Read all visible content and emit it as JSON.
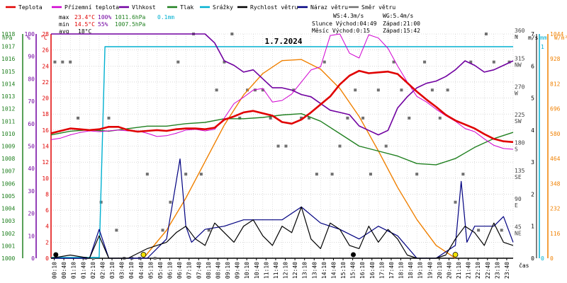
{
  "chart_data": {
    "type": "line",
    "title": "1.7.2024",
    "legend": [
      {
        "label": "Teplota",
        "color": "#e00000"
      },
      {
        "label": "Přízemní teplota",
        "color": "#d000d0"
      },
      {
        "label": "Vlhkost",
        "color": "#7000a0"
      },
      {
        "label": "Tlak",
        "color": "#208020"
      },
      {
        "label": "Srážky",
        "color": "#00b0d0"
      },
      {
        "label": "Rychlost větru",
        "color": "#000000"
      },
      {
        "label": "Náraz větru",
        "color": "#000080"
      },
      {
        "label": "Směr větru",
        "color": "#707070"
      }
    ],
    "stats": {
      "max_label": "max",
      "max_temp": "23.4°C",
      "max_hum": "100%",
      "max_press": "1011.6hPa",
      "max_rain": "0.1mm",
      "min_label": "min",
      "min_temp": "14.5°C",
      "min_hum": "55%",
      "min_press": "1007.5hPa",
      "avg_label": "avg",
      "avg_temp": "18°C",
      "ws": "WS:4.3m/s",
      "wg": "WG:5.4m/s",
      "sun": "Slunce Východ:04:49",
      "sun_set": "Západ:21:00",
      "moon": "Měsíc  Východ:0:15",
      "moon_set": "Západ:15:42"
    },
    "axes": {
      "hpa_unit": "hPa",
      "pct_unit": "%",
      "c_unit": "°C",
      "deg_unit": "°",
      "ms_unit": "m/s",
      "mm_unit": "mm",
      "wm_unit": "W/m²",
      "xlabel": "čas",
      "hpa_ticks": [
        "1018",
        "1017",
        "1016",
        "1015",
        "1014",
        "1013",
        "1012",
        "1011",
        "1010",
        "1009",
        "1008",
        "1007",
        "1006",
        "1005",
        "1004",
        "1003",
        "1002",
        "1001",
        "1000"
      ],
      "pct_ticks": [
        "100",
        "90",
        "80",
        "70",
        "60",
        "50",
        "40",
        "30",
        "20",
        "10",
        "0"
      ],
      "c_ticks": [
        "28",
        "26",
        "24",
        "22",
        "20",
        "18",
        "16",
        "14",
        "12",
        "10",
        "8",
        "6",
        "4",
        "2",
        "0"
      ],
      "dir_ticks": [
        {
          "v": "360",
          "d": "N"
        },
        {
          "v": "315",
          "d": "NW"
        },
        {
          "v": "270",
          "d": "W"
        },
        {
          "v": "225",
          "d": "SW"
        },
        {
          "v": "180",
          "d": "S"
        },
        {
          "v": "135",
          "d": "SE"
        },
        {
          "v": "90",
          "d": "E"
        },
        {
          "v": "45",
          "d": "NE"
        }
      ],
      "ms_ticks": [
        "7",
        "6",
        "5",
        "4",
        "3",
        "2",
        "1",
        "0"
      ],
      "mm_ticks": [
        "1",
        "0"
      ],
      "wm_ticks": [
        "1044",
        "928",
        "812",
        "696",
        "580",
        "464",
        "348",
        "232",
        "116",
        "0"
      ],
      "time_ticks": [
        "00:10",
        "00:40",
        "01:10",
        "01:40",
        "02:10",
        "02:40",
        "03:10",
        "03:40",
        "04:10",
        "04:40",
        "05:10",
        "05:40",
        "06:10",
        "06:40",
        "07:10",
        "07:40",
        "08:10",
        "08:40",
        "09:10",
        "09:40",
        "10:10",
        "10:40",
        "11:10",
        "11:40",
        "12:10",
        "12:40",
        "13:10",
        "13:40",
        "14:10",
        "14:40",
        "15:10",
        "15:40",
        "16:10",
        "16:40",
        "17:10",
        "17:40",
        "18:10",
        "18:40",
        "19:10",
        "19:40",
        "20:10",
        "20:40",
        "21:10",
        "21:40",
        "22:10",
        "22:40",
        "23:10",
        "23:40"
      ]
    },
    "ylim_temp": [
      0,
      28
    ],
    "ylim_hum": [
      0,
      100
    ],
    "ylim_press": [
      1000,
      1018
    ],
    "ylim_wind": [
      0,
      7
    ],
    "ylim_dir": [
      0,
      360
    ],
    "ylim_solar": [
      0,
      1044
    ],
    "series": [
      {
        "name": "Teplota",
        "x_hours": [
          0,
          0.5,
          1,
          1.5,
          2,
          2.5,
          3,
          3.5,
          4,
          4.5,
          5,
          5.5,
          6,
          6.5,
          7,
          7.5,
          8,
          8.5,
          9,
          9.5,
          10,
          10.5,
          11,
          11.5,
          12,
          12.5,
          13,
          13.5,
          14,
          14.5,
          15,
          15.5,
          16,
          16.5,
          17,
          17.5,
          18,
          18.5,
          19,
          19.5,
          20,
          20.5,
          21,
          21.5,
          22,
          22.5,
          23,
          23.5,
          24
        ],
        "values": [
          15.6,
          15.9,
          16.2,
          16.1,
          16.0,
          16.1,
          16.4,
          16.4,
          16.0,
          15.8,
          15.9,
          16.0,
          15.9,
          16.1,
          16.2,
          16.2,
          16.1,
          16.3,
          17.3,
          17.7,
          18.2,
          18.4,
          18.1,
          17.8,
          17.0,
          16.8,
          17.3,
          18.2,
          19.2,
          20.2,
          21.7,
          22.8,
          23.4,
          23.1,
          23.2,
          23.3,
          23.0,
          21.9,
          20.8,
          19.8,
          18.9,
          17.9,
          17.2,
          16.7,
          16.2,
          15.5,
          14.9,
          14.6,
          14.5
        ]
      },
      {
        "name": "Přízemní teplota",
        "x_hours": [
          0,
          0.5,
          1,
          1.5,
          2,
          2.5,
          3,
          3.5,
          4,
          4.5,
          5,
          5.5,
          6,
          6.5,
          7,
          7.5,
          8,
          8.5,
          9,
          9.5,
          10,
          10.5,
          11,
          11.5,
          12,
          12.5,
          13,
          13.5,
          14,
          14.5,
          15,
          15.5,
          16,
          16.5,
          17,
          17.5,
          18,
          18.5,
          19,
          19.5,
          20,
          20.5,
          21,
          21.5,
          22,
          22.5,
          23,
          23.5,
          24
        ],
        "values": [
          14.8,
          15.0,
          15.4,
          15.7,
          15.9,
          15.8,
          15.9,
          16.0,
          15.9,
          15.9,
          15.6,
          15.2,
          15.3,
          15.6,
          16.0,
          16.1,
          15.9,
          16.1,
          17.5,
          19.3,
          20.1,
          21.0,
          21.2,
          19.5,
          19.7,
          20.5,
          22.0,
          23.5,
          23.9,
          27.8,
          28.0,
          25.6,
          25.0,
          27.9,
          27.5,
          26.2,
          24.0,
          22.0,
          20.2,
          19.5,
          18.6,
          17.8,
          17.1,
          16.2,
          15.8,
          14.9,
          14.1,
          13.7,
          13.6
        ]
      },
      {
        "name": "Vlhkost",
        "x_hours": [
          0,
          1,
          2,
          3,
          4,
          5,
          6,
          7,
          8,
          8.5,
          9,
          9.5,
          10,
          10.5,
          11,
          11.5,
          12,
          12.5,
          13,
          13.5,
          14,
          14.5,
          15,
          15.5,
          16,
          16.5,
          17,
          17.5,
          18,
          18.5,
          19,
          19.5,
          20,
          20.5,
          21,
          21.5,
          22,
          22.5,
          23,
          23.5,
          24
        ],
        "values": [
          100,
          100,
          100,
          100,
          100,
          100,
          100,
          100,
          100,
          96,
          88,
          86,
          83,
          84,
          80,
          76,
          76,
          75,
          73,
          72,
          69,
          66,
          65,
          64,
          59,
          57,
          55,
          57,
          67,
          72,
          76,
          78,
          79,
          81,
          84,
          88,
          86,
          83,
          84,
          86,
          88
        ]
      },
      {
        "name": "Tlak",
        "x_hours": [
          0,
          1,
          2,
          3,
          4,
          5,
          6,
          7,
          8,
          9,
          10,
          11,
          12,
          13,
          14,
          15,
          16,
          17,
          18,
          19,
          20,
          21,
          22,
          23,
          24
        ],
        "values": [
          1009.9,
          1010.2,
          1010.3,
          1010.2,
          1010.4,
          1010.6,
          1010.6,
          1010.8,
          1010.9,
          1011.2,
          1011.2,
          1011.3,
          1011.5,
          1011.6,
          1011.0,
          1010.0,
          1009.0,
          1008.6,
          1008.2,
          1007.6,
          1007.5,
          1008.0,
          1008.9,
          1009.6,
          1010.1
        ]
      },
      {
        "name": "Srážky",
        "x_hours": [
          0,
          2.5,
          2.8,
          24
        ],
        "values": [
          0,
          0,
          0.1,
          0.1
        ]
      },
      {
        "name": "Rychlost větru",
        "x_hours": [
          0,
          1,
          2,
          2.5,
          3,
          4,
          5,
          6,
          6.5,
          7,
          7.5,
          8,
          8.5,
          9,
          9.5,
          10,
          10.5,
          11,
          11.5,
          12,
          12.5,
          13,
          13.5,
          14,
          14.5,
          15,
          15.5,
          16,
          16.5,
          17,
          17.5,
          18,
          18.5,
          19,
          19.5,
          20,
          20.5,
          21,
          21.5,
          22,
          22.5,
          23,
          23.5,
          24
        ],
        "values": [
          0,
          0.1,
          0,
          0.7,
          0,
          0,
          0.3,
          0.5,
          0.8,
          1.0,
          0.6,
          0.4,
          1.1,
          0.8,
          0.5,
          1.0,
          1.2,
          0.7,
          0.4,
          1.0,
          0.8,
          1.6,
          0.6,
          0.3,
          1.1,
          0.9,
          0.4,
          0.3,
          1.0,
          0.5,
          0.9,
          0.6,
          0.1,
          0,
          0,
          0,
          0.1,
          0.6,
          1.0,
          0.8,
          0.4,
          1.1,
          0.5,
          0.4
        ]
      },
      {
        "name": "Náraz větru",
        "x_hours": [
          0,
          2,
          2.5,
          3,
          4,
          5,
          6,
          6.7,
          7,
          7.3,
          8,
          9,
          10,
          11,
          12,
          13,
          14,
          15,
          16,
          17,
          18,
          19,
          20,
          21,
          21.3,
          21.6,
          22,
          23,
          23.5,
          24
        ],
        "values": [
          0,
          0,
          0.9,
          0,
          0,
          0,
          0.6,
          3.1,
          1.0,
          0.5,
          0.9,
          1.0,
          1.2,
          1.2,
          1.2,
          1.6,
          1.1,
          0.9,
          0.6,
          1.0,
          0.7,
          0,
          0,
          0.4,
          2.4,
          0.5,
          1.0,
          1.0,
          1.3,
          0.5
        ]
      },
      {
        "name": "Směr větru",
        "x_hours": [
          0.2,
          0.6,
          1.0,
          1.4,
          1.8,
          2.2,
          2.6,
          3.0,
          3.4,
          3.8,
          4.2,
          4.6,
          5.0,
          5.4,
          5.8,
          6.2,
          6.6,
          7.0,
          7.4,
          7.8,
          8.2,
          8.6,
          9.0,
          9.4,
          9.8,
          10.2,
          10.6,
          11.0,
          11.4,
          11.8,
          12.2,
          12.6,
          13.0,
          13.4,
          13.8,
          14.2,
          14.6,
          15.0,
          15.4,
          15.8,
          16.2,
          16.6,
          17.0,
          17.4,
          17.8,
          18.2,
          18.6,
          19.0,
          19.4,
          19.8,
          20.2,
          20.6,
          21.0,
          21.4,
          21.8,
          22.2,
          22.6,
          23.0,
          23.4,
          23.8
        ],
        "values": [
          315,
          315,
          315,
          225,
          0,
          0,
          90,
          225,
          45,
          0,
          0,
          0,
          135,
          0,
          45,
          90,
          315,
          135,
          360,
          135,
          45,
          270,
          315,
          360,
          225,
          270,
          270,
          270,
          225,
          180,
          180,
          270,
          225,
          225,
          135,
          315,
          135,
          180,
          225,
          270,
          225,
          135,
          270,
          180,
          315,
          270,
          225,
          135,
          315,
          270,
          225,
          270,
          90,
          135,
          315,
          45,
          360,
          315,
          45,
          315
        ]
      },
      {
        "name": "Solar",
        "x_hours": [
          4.8,
          6,
          7,
          8,
          9,
          10,
          11,
          12,
          13,
          14,
          15,
          16,
          17,
          18,
          19,
          20,
          21
        ],
        "values": [
          0,
          130,
          280,
          450,
          620,
          760,
          860,
          920,
          925,
          880,
          790,
          660,
          500,
          330,
          180,
          60,
          0
        ]
      }
    ],
    "markers": {
      "sunrise_hour": 4.8,
      "sunset_hour": 21.0,
      "moonrise_hour": 0.25,
      "moonset_hour": 15.7
    },
    "colors": {
      "solar": "#f08000",
      "rain_axis": "#00b0d0",
      "hpa_axis": "#208020",
      "pct_axis": "#7000a0",
      "c_axis": "#e00000",
      "grid": "#c0c0c0"
    }
  }
}
